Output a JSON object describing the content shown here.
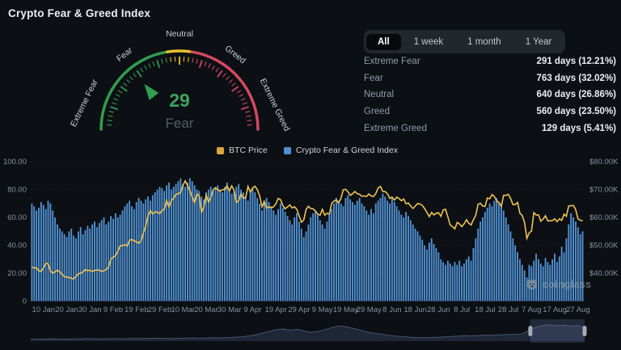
{
  "page": {
    "title": "Crypto Fear & Greed Index"
  },
  "gauge": {
    "value": 29,
    "classification": "Fear",
    "value_color": "#3da45c",
    "classification_color": "#565d68",
    "axis_labels": [
      "Extreme Fear",
      "Fear",
      "Neutral",
      "Greed",
      "Extreme Greed"
    ],
    "segments": [
      {
        "from": 0,
        "to": 45,
        "color": "#2f9e4f"
      },
      {
        "from": 45,
        "to": 55,
        "color": "#e6c22e"
      },
      {
        "from": 55,
        "to": 100,
        "color": "#d5495f"
      }
    ]
  },
  "tabs": {
    "items": [
      {
        "label": "All",
        "active": true
      },
      {
        "label": "1 week",
        "active": false
      },
      {
        "label": "1 month",
        "active": false
      },
      {
        "label": "1 Year",
        "active": false
      }
    ]
  },
  "stats": {
    "rows": [
      {
        "label": "Extreme Fear",
        "value": "291 days (12.21%)"
      },
      {
        "label": "Fear",
        "value": "763 days (32.02%)"
      },
      {
        "label": "Neutral",
        "value": "640 days (26.86%)"
      },
      {
        "label": "Greed",
        "value": "560 days (23.50%)"
      },
      {
        "label": "Extreme Greed",
        "value": "129 days (5.41%)"
      }
    ]
  },
  "legend": {
    "items": [
      {
        "label": "BTC Price",
        "color": "#d9a73a"
      },
      {
        "label": "Crypto Fear & Greed Index",
        "color": "#4f90d1"
      }
    ]
  },
  "watermark": {
    "text": "coinglass"
  },
  "chart_data": {
    "type": "bar",
    "title": "Crypto Fear & Greed Index history with BTC price overlay",
    "left_axis": {
      "ticks": [
        "100.00",
        "80.00",
        "60.00",
        "40.00",
        "20.00",
        "0"
      ],
      "range": [
        0,
        100
      ]
    },
    "right_axis": {
      "ticks": [
        "$80.00K",
        "$70.00K",
        "$60.00K",
        "$50.00K",
        "$40.00K"
      ],
      "range_k": [
        30,
        80
      ]
    },
    "x_labels": [
      "10 Jan",
      "20 Jan",
      "30 Jan",
      "9 Feb",
      "19 Feb",
      "29 Feb",
      "10 Mar",
      "20 Mar",
      "30 Mar",
      "9 Apr",
      "19 Apr",
      "29 Apr",
      "9 May",
      "19 May",
      "29 May",
      "8 Jun",
      "18 Jun",
      "28 Jun",
      "8 Jul",
      "18 Jul",
      "28 Jul",
      "7 Aug",
      "17 Aug",
      "27 Aug"
    ],
    "x_label_first_index": 5,
    "x_label_step": 10,
    "series": [
      {
        "name": "Crypto Fear & Greed Index",
        "type": "bar",
        "axis": "left",
        "color": "#4f90d1",
        "values": [
          70,
          68,
          65,
          67,
          71,
          69,
          66,
          72,
          70,
          65,
          60,
          55,
          52,
          50,
          48,
          46,
          50,
          52,
          47,
          45,
          50,
          53,
          48,
          51,
          54,
          52,
          55,
          57,
          53,
          56,
          58,
          60,
          55,
          57,
          61,
          59,
          63,
          60,
          62,
          65,
          68,
          70,
          72,
          68,
          66,
          71,
          74,
          72,
          70,
          73,
          75,
          72,
          76,
          78,
          80,
          82,
          81,
          79,
          83,
          85,
          80,
          82,
          84,
          86,
          88,
          84,
          82,
          85,
          88,
          86,
          83,
          80,
          79,
          75,
          73,
          78,
          80,
          82,
          79,
          81,
          83,
          80,
          78,
          82,
          85,
          80,
          77,
          79,
          82,
          84,
          80,
          78,
          75,
          72,
          79,
          81,
          78,
          74,
          70,
          65,
          72,
          74,
          71,
          68,
          65,
          62,
          66,
          70,
          67,
          64,
          61,
          58,
          55,
          60,
          63,
          57,
          52,
          46,
          50,
          55,
          60,
          63,
          65,
          62,
          58,
          55,
          52,
          57,
          62,
          66,
          70,
          74,
          72,
          70,
          68,
          74,
          76,
          73,
          71,
          69,
          72,
          74,
          70,
          68,
          65,
          62,
          66,
          63,
          70,
          72,
          74,
          77,
          75,
          72,
          70,
          74,
          71,
          68,
          65,
          62,
          60,
          64,
          61,
          58,
          55,
          52,
          50,
          47,
          44,
          40,
          37,
          42,
          45,
          41,
          38,
          35,
          30,
          28,
          26,
          29,
          27,
          25,
          28,
          26,
          29,
          25,
          27,
          30,
          32,
          29,
          38,
          45,
          52,
          57,
          60,
          64,
          67,
          70,
          68,
          72,
          74,
          71,
          68,
          65,
          60,
          55,
          50,
          45,
          40,
          35,
          30,
          26,
          22,
          17,
          26,
          25,
          29,
          34,
          30,
          27,
          25,
          31,
          28,
          26,
          30,
          34,
          28,
          32,
          39,
          35,
          45,
          55,
          63,
          60,
          57,
          53,
          48,
          50
        ]
      },
      {
        "name": "BTC Price",
        "type": "line",
        "axis": "right",
        "color": "#ecc352",
        "values_usd_k": [
          42.2,
          41.9,
          41.9,
          40.8,
          40.7,
          41.9,
          43.6,
          43.3,
          40.8,
          40.0,
          40.6,
          41.1,
          40.5,
          39.6,
          38.8,
          38.6,
          38.5,
          38.2,
          37.9,
          38.9,
          39.8,
          40.0,
          40.5,
          41.3,
          40.9,
          41.1,
          40.6,
          41.0,
          41.2,
          41.1,
          40.6,
          40.9,
          41.3,
          42.2,
          45.1,
          45.8,
          46.3,
          47.9,
          49.8,
          49.9,
          50.3,
          49.7,
          51.8,
          52.1,
          51.6,
          51.3,
          50.7,
          51.6,
          54.5,
          57.0,
          60.6,
          62.5,
          61.2,
          62.0,
          61.9,
          61.4,
          62.4,
          63.1,
          66.1,
          63.8,
          66.1,
          66.9,
          68.3,
          68.5,
          69.0,
          71.5,
          73.1,
          71.4,
          69.5,
          67.3,
          65.3,
          68.4,
          67.6,
          61.9,
          63.8,
          67.9,
          65.5,
          67.2,
          69.9,
          70.7,
          69.9,
          69.4,
          70.0,
          69.9,
          71.3,
          69.6,
          71.3,
          69.7,
          65.4,
          66.0,
          68.5,
          66.8,
          67.1,
          71.1,
          69.1,
          70.6,
          71.2,
          70.0,
          67.8,
          63.8,
          65.7,
          63.4,
          63.8,
          63.5,
          63.8,
          64.9,
          66.8,
          66.4,
          64.3,
          63.1,
          63.8,
          64.5,
          63.4,
          63.8,
          62.9,
          60.6,
          58.3,
          59.1,
          62.9,
          64.0,
          63.2,
          63.1,
          62.3,
          61.2,
          60.8,
          62.9,
          60.8,
          61.5,
          61.2,
          65.0,
          65.9,
          66.3,
          65.2,
          66.9,
          69.9,
          70.1,
          69.2,
          67.9,
          68.5,
          69.3,
          68.5,
          68.3,
          67.6,
          67.7,
          67.5,
          68.4,
          67.7,
          67.5,
          68.6,
          70.6,
          71.1,
          69.3,
          69.3,
          68.5,
          66.8,
          67.3,
          66.2,
          67.3,
          66.8,
          66.0,
          66.6,
          64.9,
          65.2,
          64.1,
          63.2,
          64.1,
          65.0,
          64.8,
          64.3,
          63.2,
          61.8,
          60.3,
          61.8,
          60.9,
          61.5,
          61.7,
          60.4,
          62.7,
          62.9,
          60.2,
          57.3,
          56.7,
          55.9,
          58.2,
          57.7,
          56.7,
          57.7,
          59.2,
          57.9,
          57.3,
          59.2,
          60.8,
          64.7,
          65.1,
          64.1,
          63.9,
          67.0,
          66.7,
          68.2,
          67.5,
          65.9,
          65.4,
          64.0,
          67.9,
          67.9,
          68.3,
          66.8,
          64.6,
          64.6,
          65.4,
          61.5,
          60.7,
          58.2,
          52.5,
          54.5,
          55.1,
          61.7,
          60.9,
          60.9,
          58.7,
          59.4,
          60.6,
          58.7,
          58.8,
          58.9,
          59.5,
          58.5,
          59.5,
          59.0,
          61.2,
          60.4,
          64.1,
          64.2,
          64.3,
          62.9,
          59.5,
          59.0,
          58.8
        ]
      }
    ],
    "navigator": {
      "selection_start_frac": 0.902,
      "selection_end_frac": 1.0,
      "area_color": "#1e2637",
      "line_color": "#46536f",
      "values_norm": [
        0.1,
        0.09,
        0.1,
        0.11,
        0.1,
        0.09,
        0.1,
        0.11,
        0.12,
        0.11,
        0.1,
        0.11,
        0.12,
        0.11,
        0.12,
        0.13,
        0.12,
        0.13,
        0.14,
        0.13,
        0.12,
        0.13,
        0.14,
        0.15,
        0.14,
        0.15,
        0.16,
        0.15,
        0.17,
        0.18,
        0.2,
        0.24,
        0.3,
        0.38,
        0.46,
        0.54,
        0.58,
        0.52,
        0.56,
        0.48,
        0.42,
        0.46,
        0.55,
        0.65,
        0.72,
        0.68,
        0.6,
        0.52,
        0.44,
        0.38,
        0.33,
        0.28,
        0.24,
        0.21,
        0.19,
        0.17,
        0.16,
        0.17,
        0.18,
        0.2,
        0.22,
        0.24,
        0.26,
        0.25,
        0.27,
        0.29,
        0.28,
        0.3,
        0.32,
        0.31,
        0.34,
        0.5,
        0.66,
        0.74,
        0.78,
        0.73,
        0.76,
        0.7,
        0.74,
        0.66
      ]
    }
  }
}
